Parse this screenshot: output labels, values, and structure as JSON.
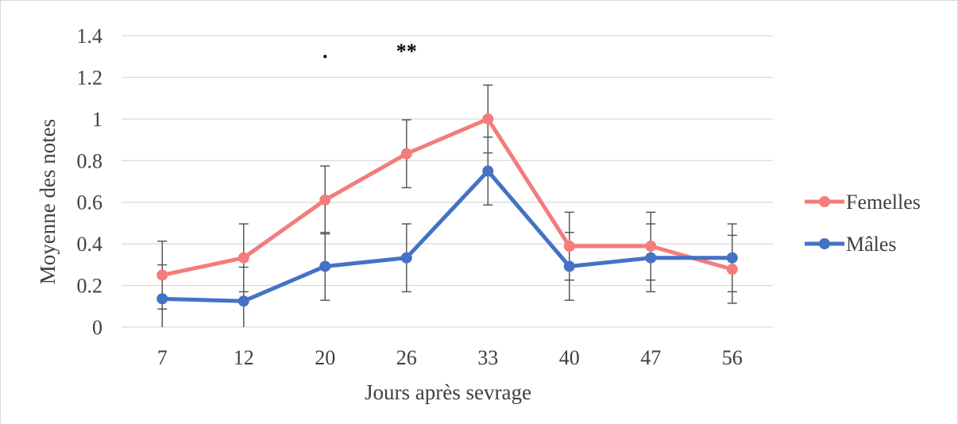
{
  "chart_data": {
    "type": "line",
    "title": "",
    "xlabel": "Jours après sevrage",
    "ylabel": "Moyenne des notes",
    "categories": [
      "7",
      "12",
      "20",
      "26",
      "33",
      "40",
      "47",
      "56"
    ],
    "ylim": [
      0,
      1.4
    ],
    "yticks": [
      "0",
      "0.2",
      "0.4",
      "0.6",
      "0.8",
      "1",
      "1.2",
      "1.4"
    ],
    "grid": "horizontal",
    "legend_position": "right",
    "series": [
      {
        "name": "Femelles",
        "color": "#f47c7c",
        "values": [
          0.25,
          0.333,
          0.611,
          0.833,
          1.0,
          0.389,
          0.389,
          0.278
        ],
        "error": [
          0.163,
          0.163,
          0.163,
          0.163,
          0.163,
          0.163,
          0.163,
          0.163
        ]
      },
      {
        "name": "Mâles",
        "color": "#4472c4",
        "values": [
          0.136,
          0.125,
          0.292,
          0.333,
          0.75,
          0.292,
          0.333,
          0.333
        ],
        "error": [
          0.163,
          0.163,
          0.163,
          0.163,
          0.163,
          0.163,
          0.163,
          0.163
        ]
      }
    ],
    "annotations": [
      {
        "category": "20",
        "text": "."
      },
      {
        "category": "26",
        "text": "**"
      }
    ]
  }
}
